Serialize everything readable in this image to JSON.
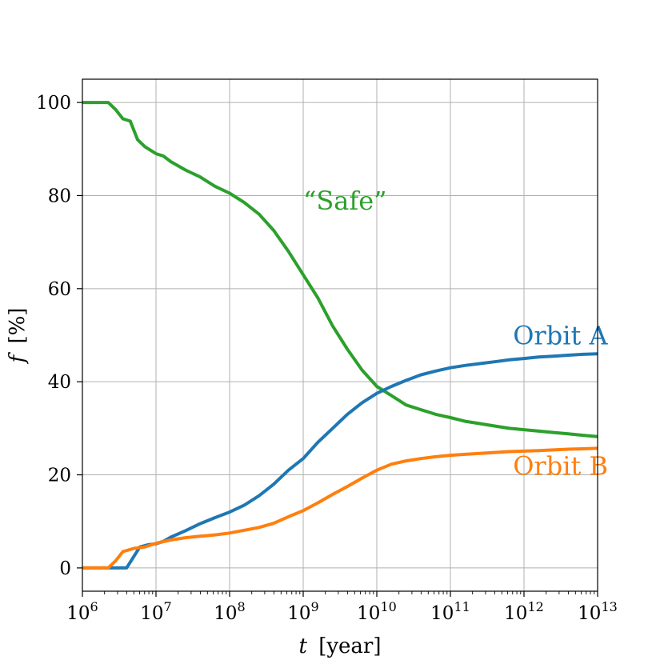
{
  "chart_data": {
    "type": "line",
    "xscale": "log",
    "xlim_exp": [
      6,
      13
    ],
    "ylim": [
      -5,
      105
    ],
    "grid": true,
    "xlabel": {
      "var": "t",
      "unit": "[year]"
    },
    "ylabel": {
      "var": "f",
      "unit": "[%]"
    },
    "x_ticks": [
      {
        "base": "10",
        "exp": "6"
      },
      {
        "base": "10",
        "exp": "7"
      },
      {
        "base": "10",
        "exp": "8"
      },
      {
        "base": "10",
        "exp": "9"
      },
      {
        "base": "10",
        "exp": "10"
      },
      {
        "base": "10",
        "exp": "11"
      },
      {
        "base": "10",
        "exp": "12"
      },
      {
        "base": "10",
        "exp": "13"
      }
    ],
    "y_ticks": [
      0,
      20,
      40,
      60,
      80,
      100
    ],
    "series": [
      {
        "name": "“Safe”",
        "color": "#2ca02c",
        "label_at": {
          "log_t": 9.0,
          "f": 77
        },
        "log_t": [
          6.0,
          6.35,
          6.45,
          6.55,
          6.65,
          6.75,
          6.85,
          7.0,
          7.1,
          7.2,
          7.4,
          7.6,
          7.8,
          8.0,
          8.2,
          8.4,
          8.6,
          8.8,
          9.0,
          9.2,
          9.4,
          9.6,
          9.8,
          10.0,
          10.2,
          10.4,
          10.6,
          10.8,
          11.0,
          11.2,
          11.4,
          11.6,
          11.8,
          12.0,
          12.2,
          12.4,
          12.6,
          12.8,
          13.0
        ],
        "f": [
          100,
          100,
          98.5,
          96.5,
          96,
          92,
          90.5,
          89,
          88.5,
          87.3,
          85.5,
          84,
          82,
          80.5,
          78.5,
          76,
          72.5,
          68,
          63,
          58,
          52,
          47,
          42.5,
          39,
          37,
          35,
          34,
          33,
          32.3,
          31.5,
          31,
          30.5,
          30,
          29.7,
          29.4,
          29.1,
          28.8,
          28.5,
          28.2
        ]
      },
      {
        "name": "Orbit A",
        "color": "#1f77b4",
        "label_at": {
          "log_t": 11.85,
          "f": 48
        },
        "log_t": [
          6.0,
          6.6,
          6.68,
          6.78,
          6.9,
          7.0,
          7.1,
          7.2,
          7.4,
          7.6,
          7.8,
          8.0,
          8.2,
          8.4,
          8.6,
          8.8,
          9.0,
          9.2,
          9.4,
          9.6,
          9.8,
          10.0,
          10.2,
          10.4,
          10.6,
          10.8,
          11.0,
          11.2,
          11.4,
          11.6,
          11.8,
          12.0,
          12.2,
          12.4,
          12.6,
          12.8,
          13.0
        ],
        "f": [
          0,
          0,
          2,
          4.5,
          5,
          5.2,
          5.7,
          6.6,
          8,
          9.5,
          10.8,
          12,
          13.5,
          15.5,
          18,
          21,
          23.5,
          27,
          30,
          33,
          35.5,
          37.5,
          39,
          40.3,
          41.5,
          42.3,
          43,
          43.5,
          43.9,
          44.3,
          44.7,
          45,
          45.3,
          45.5,
          45.7,
          45.9,
          46
        ]
      },
      {
        "name": "Orbit B",
        "color": "#ff7f0e",
        "label_at": {
          "log_t": 11.85,
          "f": 20
        },
        "log_t": [
          6.0,
          6.35,
          6.45,
          6.55,
          6.7,
          6.85,
          7.0,
          7.2,
          7.4,
          7.6,
          7.8,
          8.0,
          8.2,
          8.4,
          8.6,
          8.8,
          9.0,
          9.2,
          9.4,
          9.6,
          9.8,
          10.0,
          10.2,
          10.4,
          10.6,
          10.8,
          11.0,
          11.2,
          11.4,
          11.6,
          11.8,
          12.0,
          12.2,
          12.4,
          12.6,
          12.8,
          13.0
        ],
        "f": [
          0,
          0,
          1.5,
          3.5,
          4.2,
          4.5,
          5.3,
          6,
          6.5,
          6.8,
          7.1,
          7.5,
          8.1,
          8.7,
          9.6,
          11,
          12.3,
          14,
          15.8,
          17.5,
          19.3,
          21,
          22.3,
          23,
          23.5,
          23.9,
          24.2,
          24.4,
          24.6,
          24.8,
          25,
          25.1,
          25.2,
          25.35,
          25.5,
          25.6,
          25.7
        ]
      }
    ]
  }
}
